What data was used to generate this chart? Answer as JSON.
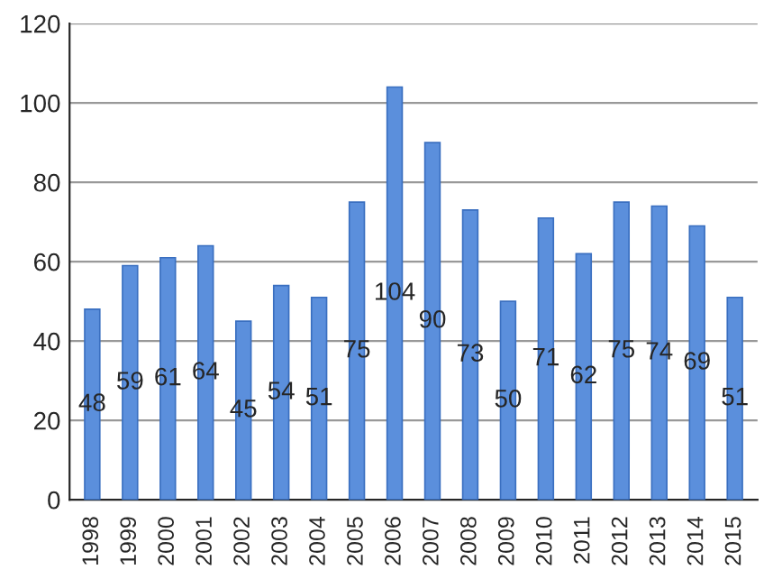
{
  "chart_data": {
    "type": "bar",
    "categories": [
      "1998",
      "1999",
      "2000",
      "2001",
      "2002",
      "2003",
      "2004",
      "2005",
      "2006",
      "2007",
      "2008",
      "2009",
      "2010",
      "2011",
      "2012",
      "2013",
      "2014",
      "2015"
    ],
    "values": [
      48,
      59,
      61,
      64,
      45,
      54,
      51,
      75,
      104,
      90,
      73,
      50,
      71,
      62,
      75,
      74,
      69,
      51
    ],
    "color": "#5b8fdc",
    "ylim": [
      0,
      120
    ],
    "yticks": [
      0,
      20,
      40,
      60,
      80,
      100,
      120
    ],
    "grid": "y",
    "data_labels": true
  }
}
